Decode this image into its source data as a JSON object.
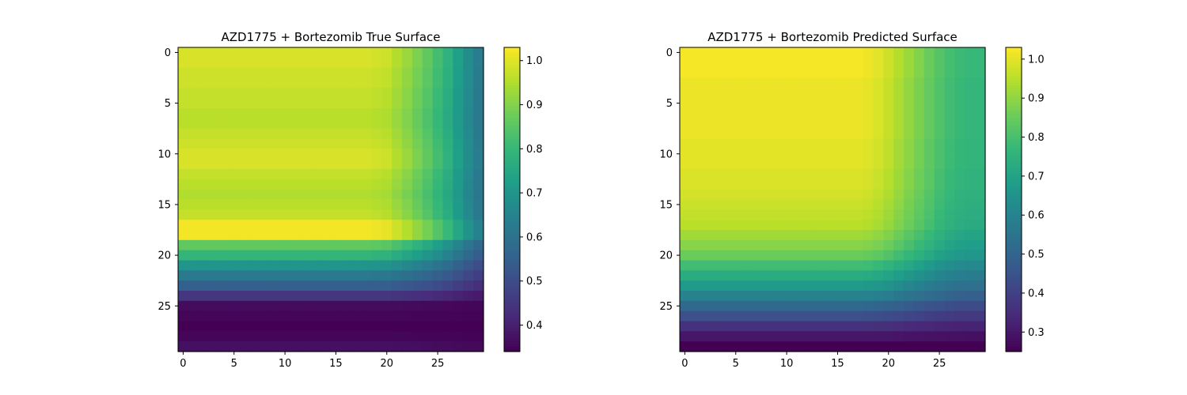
{
  "chart_data": [
    {
      "type": "heatmap",
      "title": "AZD1775 + Bortezomib True Surface",
      "rows": 30,
      "cols": 30,
      "colormap": "viridis",
      "xticks": [
        0,
        5,
        10,
        15,
        20,
        25
      ],
      "yticks": [
        0,
        5,
        10,
        15,
        20,
        25
      ],
      "colorbar": {
        "min": 0.34,
        "max": 1.03,
        "ticks": [
          "0.4",
          "0.5",
          "0.6",
          "0.7",
          "0.8",
          "0.9",
          "1.0"
        ]
      },
      "row_profile": [
        0.99,
        0.99,
        0.98,
        0.98,
        0.97,
        0.97,
        0.96,
        0.96,
        0.97,
        0.98,
        0.99,
        0.99,
        0.97,
        0.96,
        0.95,
        0.96,
        0.97,
        1.02,
        1.02,
        0.86,
        0.79,
        0.7,
        0.62,
        0.55,
        0.45,
        0.36,
        0.35,
        0.34,
        0.35,
        0.37
      ],
      "col_factor": [
        1.0,
        1.0,
        1.0,
        1.0,
        1.0,
        1.0,
        1.0,
        1.0,
        1.0,
        1.0,
        1.0,
        1.0,
        1.0,
        1.0,
        1.0,
        1.0,
        1.0,
        1.0,
        1.0,
        0.99,
        0.98,
        0.94,
        0.9,
        0.85,
        0.8,
        0.74,
        0.68,
        0.6,
        0.52,
        0.45
      ]
    },
    {
      "type": "heatmap",
      "title": "AZD1775 + Bortezomib Predicted Surface",
      "rows": 30,
      "cols": 30,
      "colormap": "viridis",
      "xticks": [
        0,
        5,
        10,
        15,
        20,
        25
      ],
      "yticks": [
        0,
        5,
        10,
        15,
        20,
        25
      ],
      "colorbar": {
        "min": 0.25,
        "max": 1.03,
        "ticks": [
          "0.3",
          "0.4",
          "0.5",
          "0.6",
          "0.7",
          "0.8",
          "0.9",
          "1.0"
        ]
      },
      "row_profile": [
        1.02,
        1.02,
        1.02,
        1.01,
        1.01,
        1.01,
        1.01,
        1.01,
        1.01,
        1.0,
        1.0,
        1.0,
        0.99,
        0.99,
        0.98,
        0.97,
        0.96,
        0.95,
        0.92,
        0.89,
        0.85,
        0.79,
        0.73,
        0.67,
        0.6,
        0.51,
        0.44,
        0.36,
        0.3,
        0.25
      ],
      "col_factor": [
        1.0,
        1.0,
        1.0,
        1.0,
        1.0,
        1.0,
        1.0,
        1.0,
        1.0,
        1.0,
        1.0,
        1.0,
        1.0,
        1.0,
        1.0,
        1.0,
        1.0,
        1.0,
        0.99,
        0.97,
        0.94,
        0.9,
        0.86,
        0.82,
        0.78,
        0.74,
        0.71,
        0.69,
        0.68,
        0.68
      ]
    }
  ]
}
